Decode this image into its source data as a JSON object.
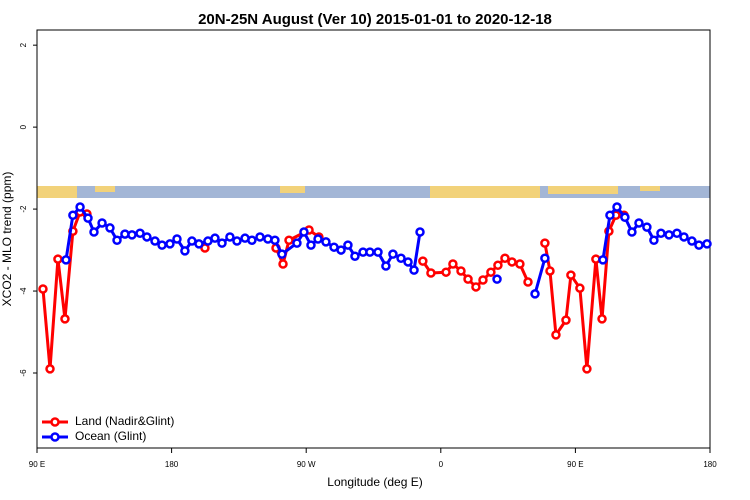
{
  "chart_data": {
    "type": "line",
    "title": "20N-25N August (Ver 10)   2015-01-01 to 2020-12-18",
    "x_label": "Longitude (deg E)",
    "y_label": "XCO2 - MLO trend (ppm)",
    "xlim": [
      90,
      540
    ],
    "ylim": [
      -7.83,
      2.37
    ],
    "xticks": [
      {
        "value": 90,
        "label": "90 E"
      },
      {
        "value": 180,
        "label": "180"
      },
      {
        "value": 270,
        "label": "90 W"
      },
      {
        "value": 360,
        "label": "0"
      },
      {
        "value": 450,
        "label": "90 E"
      },
      {
        "value": 540,
        "label": "180"
      }
    ],
    "yticks": [
      2,
      0,
      -2,
      -4,
      -6
    ],
    "legend": "bottom-left",
    "series": [
      {
        "name": "Land (Nadir&Glint)",
        "color": "#ff0000",
        "x": [
          94,
          98.7,
          104,
          108.7,
          114,
          118.8,
          123.4,
          null,
          202.3,
          null,
          249.8,
          254.5,
          258.5,
          271.9,
          278.5,
          null,
          348,
          353.4,
          363.5,
          368.1,
          373.5,
          378.2,
          383.5,
          388.2,
          393.5,
          398.2,
          402.9,
          407.6,
          412.9,
          418.3,
          null,
          429.6,
          433,
          437,
          443.7,
          447,
          453,
          457.7,
          463.7,
          467.8,
          472.4,
          477.1,
          482.5
        ],
        "values": [
          -3.95,
          -5.9,
          -3.22,
          -4.68,
          -2.54,
          -2.07,
          -2.12,
          null,
          -2.95,
          null,
          -2.95,
          -3.34,
          -2.76,
          -2.51,
          -2.68,
          null,
          -3.27,
          -3.56,
          -3.54,
          -3.34,
          -3.51,
          -3.71,
          -3.9,
          -3.73,
          -3.54,
          -3.37,
          -3.2,
          -3.29,
          -3.34,
          -3.78,
          null,
          -2.83,
          -3.51,
          -5.07,
          -4.71,
          -3.61,
          -3.93,
          -5.9,
          -3.22,
          -4.68,
          -2.54,
          -2.15,
          -2.15
        ]
      },
      {
        "name": "Ocean (Glint)",
        "color": "#0000ff",
        "x": [
          109.4,
          114,
          118.8,
          124.1,
          128.1,
          133.5,
          138.8,
          143.5,
          148.8,
          153.5,
          158.9,
          163.5,
          168.9,
          173.6,
          178.9,
          183.6,
          188.9,
          193.6,
          198.3,
          204.3,
          209,
          213.7,
          219,
          223.7,
          229.1,
          233.7,
          239.1,
          244.4,
          249.1,
          253.8,
          263.8,
          268.5,
          273.2,
          277.9,
          283.2,
          288.6,
          293.3,
          297.9,
          302.6,
          308,
          312.6,
          318,
          323.3,
          328,
          333.4,
          338.1,
          342.1,
          346.1,
          null,
          397.6,
          null,
          423,
          429.6,
          null,
          468.4,
          473.1,
          477.8,
          483.1,
          487.8,
          492.5,
          497.8,
          502.5,
          507.2,
          512.6,
          517.9,
          522.6,
          527.9,
          532.6,
          538
        ],
        "values": [
          -3.24,
          -2.15,
          -1.95,
          -2.22,
          -2.56,
          -2.34,
          -2.46,
          -2.76,
          -2.61,
          -2.63,
          -2.59,
          -2.68,
          -2.78,
          -2.88,
          -2.85,
          -2.73,
          -3.02,
          -2.78,
          -2.85,
          -2.78,
          -2.71,
          -2.83,
          -2.68,
          -2.78,
          -2.71,
          -2.76,
          -2.68,
          -2.73,
          -2.76,
          -3.1,
          -2.83,
          -2.56,
          -2.88,
          -2.73,
          -2.8,
          -2.93,
          -3.0,
          -2.88,
          -3.15,
          -3.05,
          -3.05,
          -3.05,
          -3.39,
          -3.1,
          -3.2,
          -3.29,
          -3.49,
          -2.56,
          null,
          -3.71,
          null,
          -4.07,
          -3.2,
          null,
          -3.24,
          -2.15,
          -1.95,
          -2.2,
          -2.56,
          -2.34,
          -2.44,
          -2.76,
          -2.59,
          -2.63,
          -2.59,
          -2.68,
          -2.78,
          -2.88,
          -2.85
        ]
      }
    ]
  }
}
